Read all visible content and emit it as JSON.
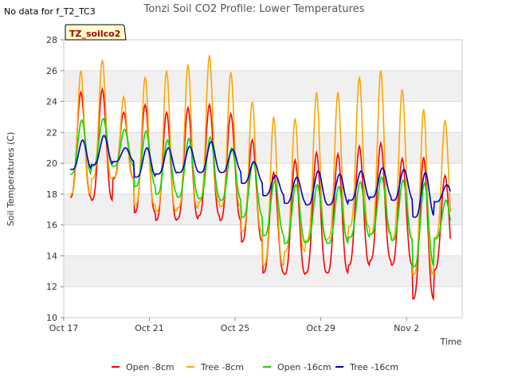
{
  "notice": "No data for f_T2_TC3",
  "chart_data": {
    "type": "line",
    "title": "Tonzi Soil CO2 Profile: Lower Temperatures",
    "badge": "TZ_soilco2",
    "xlabel": "Time",
    "ylabel": "Soil Temperatures (C)",
    "xlim": [
      0,
      18.6
    ],
    "ylim": [
      10,
      28
    ],
    "yticks": [
      10,
      12,
      14,
      16,
      18,
      20,
      22,
      24,
      26,
      28
    ],
    "xticks": [
      {
        "day": 0,
        "label": "Oct 17"
      },
      {
        "day": 4,
        "label": "Oct 21"
      },
      {
        "day": 8,
        "label": "Oct 25"
      },
      {
        "day": 12,
        "label": "Oct 29"
      },
      {
        "day": 16,
        "label": "Nov 2"
      }
    ],
    "grid": "horizontal bands",
    "legend_position": "bottom",
    "x_start_day": 0.3,
    "samples_per_day": 24,
    "series": [
      {
        "name": "Open -8cm",
        "color": "#ff0000",
        "daily_max": [
          24.6,
          24.8,
          23.3,
          23.8,
          23.3,
          23.6,
          23.8,
          23.2,
          21.5,
          19.4,
          20.2,
          20.7,
          20.6,
          21.1,
          21.3,
          20.3,
          20.4,
          19.2
        ],
        "daily_min": [
          17.8,
          17.6,
          19.0,
          16.8,
          16.3,
          16.4,
          16.6,
          16.3,
          14.9,
          12.9,
          12.8,
          12.9,
          12.9,
          13.4,
          13.7,
          13.4,
          11.2,
          13.1
        ]
      },
      {
        "name": "Tree -8cm",
        "color": "#ffa500",
        "daily_max": [
          26.0,
          26.7,
          24.3,
          25.6,
          26.0,
          26.4,
          27.0,
          25.9,
          24.0,
          23.0,
          22.9,
          24.6,
          24.6,
          25.6,
          26.0,
          24.8,
          23.5,
          22.8
        ],
        "daily_min": [
          18.0,
          19.0,
          19.1,
          17.3,
          16.9,
          17.1,
          17.5,
          17.2,
          15.6,
          13.4,
          14.3,
          15.0,
          15.1,
          15.9,
          15.4,
          15.1,
          12.8,
          15.2
        ]
      },
      {
        "name": "Open -16cm",
        "color": "#00dd00",
        "daily_max": [
          22.8,
          22.9,
          22.2,
          22.1,
          21.5,
          21.6,
          21.7,
          21.0,
          20.1,
          18.8,
          18.6,
          18.6,
          18.5,
          18.8,
          19.1,
          18.9,
          18.7,
          17.6
        ],
        "daily_min": [
          19.3,
          19.8,
          19.8,
          18.5,
          18.0,
          17.8,
          17.7,
          17.6,
          16.5,
          15.3,
          14.8,
          14.9,
          14.8,
          15.2,
          15.4,
          15.0,
          13.3,
          15.1
        ]
      },
      {
        "name": "Tree -16cm",
        "color": "#0000cc",
        "daily_max": [
          21.5,
          21.8,
          21.0,
          21.0,
          21.0,
          21.1,
          21.4,
          20.9,
          20.1,
          19.2,
          19.1,
          19.5,
          19.3,
          19.5,
          19.7,
          19.6,
          19.4,
          18.6
        ],
        "daily_min": [
          19.6,
          19.9,
          20.1,
          19.1,
          19.3,
          19.4,
          19.4,
          19.4,
          18.7,
          17.9,
          17.4,
          17.3,
          17.3,
          17.6,
          17.8,
          17.6,
          16.5,
          17.5
        ]
      }
    ]
  }
}
